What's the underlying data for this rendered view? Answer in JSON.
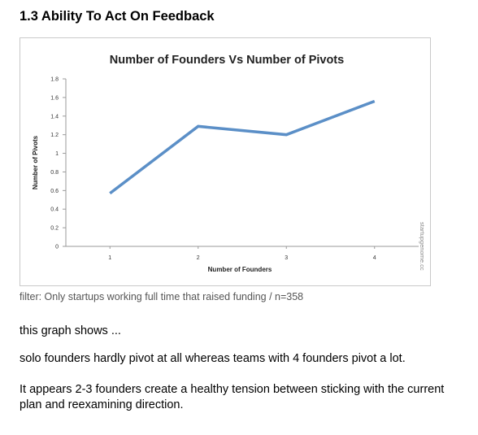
{
  "page": {
    "heading": "1.3 Ability To Act On Feedback",
    "caption": "filter: Only startups working full time that raised funding / n=358",
    "paragraphs": [
      "this graph shows ...",
      "solo founders hardly pivot at all whereas teams with 4 founders pivot a lot.",
      "It appears 2-3 founders create a healthy tension between sticking with the current plan and reexamining direction."
    ]
  },
  "chart_data": {
    "type": "line",
    "title": "Number of Founders Vs Number of Pivots",
    "xlabel": "Number of Founders",
    "ylabel": "Number of Pivots",
    "x": [
      1,
      2,
      3,
      4
    ],
    "xticks": [
      "1",
      "2",
      "3",
      "4"
    ],
    "yticks": [
      "0",
      "0.2",
      "0.4",
      "0.6",
      "0.8",
      "1",
      "1.2",
      "1.4",
      "1.6",
      "1.8"
    ],
    "ylim": [
      0,
      1.8
    ],
    "grid": false,
    "series": [
      {
        "values": [
          0.57,
          1.29,
          1.2,
          1.56
        ],
        "color": "#5b8fc7"
      }
    ],
    "watermark": "startupgenome.cc"
  }
}
